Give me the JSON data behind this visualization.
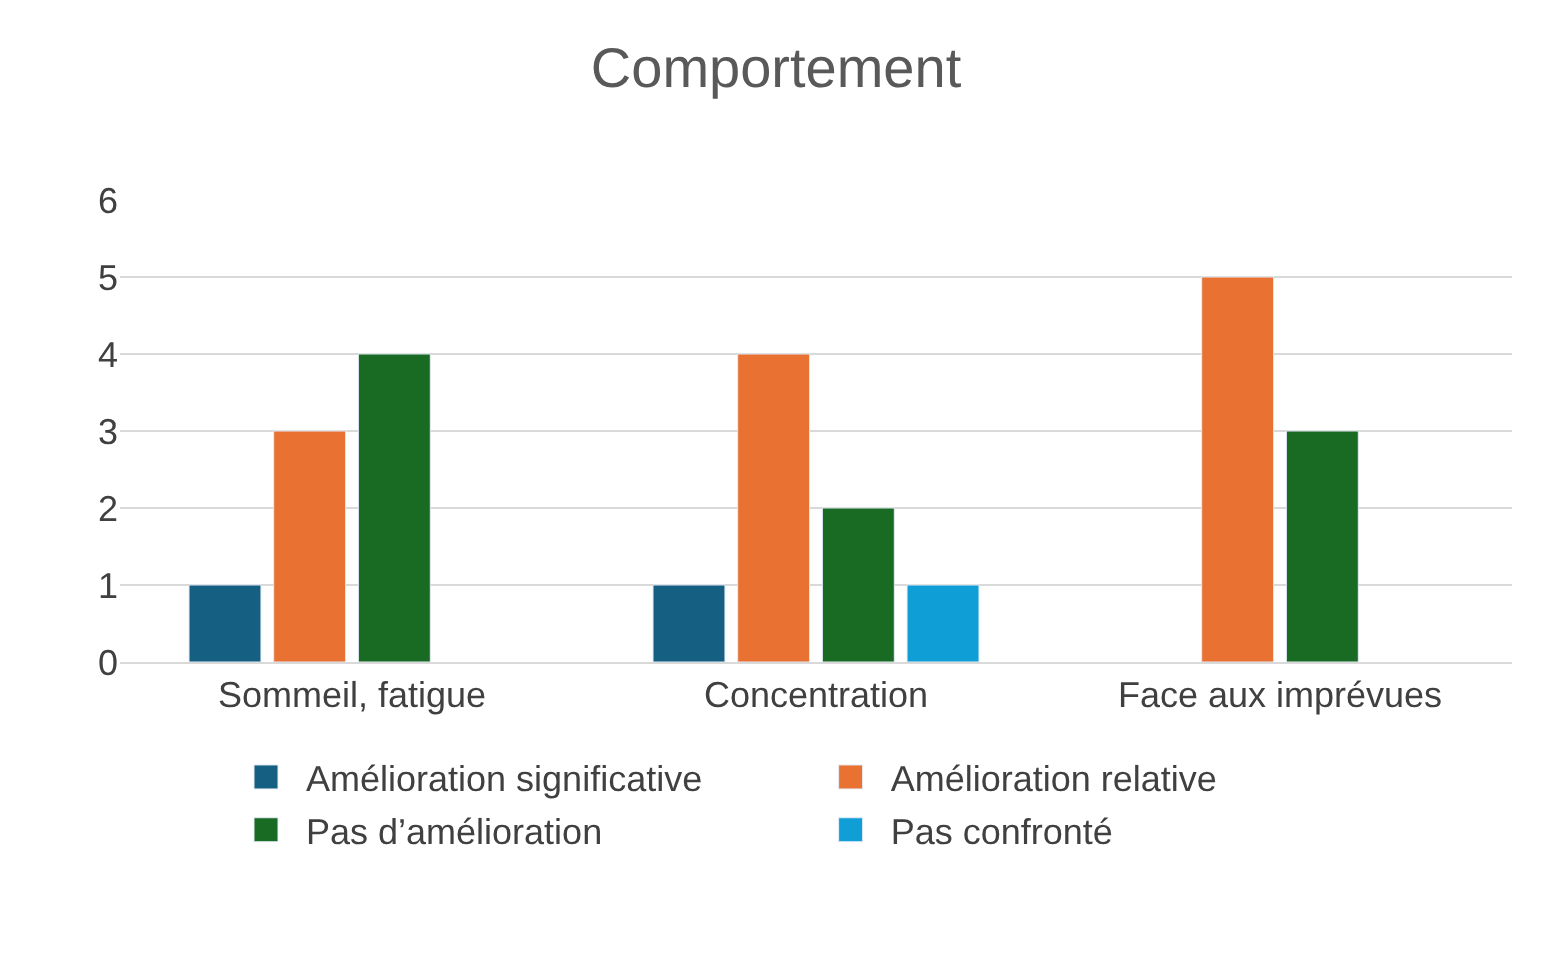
{
  "chart_data": {
    "type": "bar",
    "title": "Comportement",
    "categories": [
      "Sommeil, fatigue",
      "Concentration",
      "Face aux imprévues"
    ],
    "series": [
      {
        "name": "Amélioration significative",
        "color": "#156082",
        "values": [
          1,
          1,
          null
        ]
      },
      {
        "name": "Amélioration relative",
        "color": "#e97132",
        "values": [
          3,
          4,
          5
        ]
      },
      {
        "name": "Pas d’amélioration",
        "color": "#196b24",
        "values": [
          4,
          2,
          3
        ]
      },
      {
        "name": "Pas confronté",
        "color": "#0f9ed5",
        "values": [
          null,
          1,
          null
        ]
      }
    ],
    "ylim": [
      0,
      6
    ],
    "yticks": [
      0,
      1,
      2,
      3,
      4,
      5,
      6
    ],
    "grid": "y",
    "legend": "bottom"
  }
}
